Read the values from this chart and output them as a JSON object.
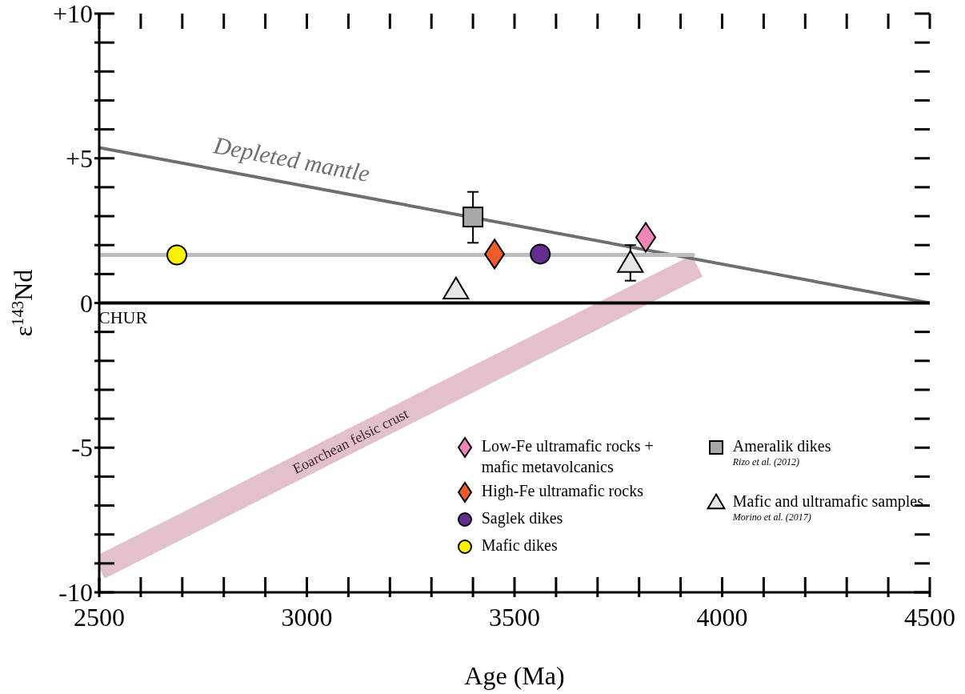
{
  "chart_data": {
    "type": "scatter",
    "xlabel": "Age (Ma)",
    "ylabel": "ε$^{143}$Nd",
    "xlim": [
      2500,
      4500
    ],
    "ylim": [
      -10,
      10
    ],
    "xticks": [
      2500,
      {
        "value": 2600,
        "label": null
      },
      {
        "value": 2700,
        "label": null
      },
      {
        "value": 2800,
        "label": null
      },
      {
        "value": 2900,
        "label": null
      },
      3000,
      {
        "value": 3100,
        "label": null
      },
      {
        "value": 3200,
        "label": null
      },
      {
        "value": 3300,
        "label": null
      },
      {
        "value": 3400,
        "label": null
      },
      3500,
      {
        "value": 3600,
        "label": null
      },
      {
        "value": 3700,
        "label": null
      },
      {
        "value": 3800,
        "label": null
      },
      {
        "value": 3900,
        "label": null
      },
      4000,
      {
        "value": 4100,
        "label": null
      },
      {
        "value": 4200,
        "label": null
      },
      {
        "value": 4300,
        "label": null
      },
      {
        "value": 4400,
        "label": null
      },
      4500
    ],
    "yticks": [
      -10,
      {
        "value": -9,
        "label": null
      },
      {
        "value": -8,
        "label": null
      },
      {
        "value": -7,
        "label": null
      },
      {
        "value": -6,
        "label": null
      },
      -5,
      {
        "value": -4,
        "label": null
      },
      {
        "value": -3,
        "label": null
      },
      {
        "value": -2,
        "label": null
      },
      {
        "value": -1,
        "label": null
      },
      0,
      {
        "value": 1,
        "label": null
      },
      {
        "value": 2,
        "label": null
      },
      {
        "value": 3,
        "label": null
      },
      {
        "value": 4,
        "label": null
      },
      {
        "value": 5,
        "label": "+5"
      },
      {
        "value": 6,
        "label": null
      },
      {
        "value": 7,
        "label": null
      },
      {
        "value": 8,
        "label": null
      },
      {
        "value": 9,
        "label": null
      },
      {
        "value": 10,
        "label": "+10"
      }
    ],
    "grid": false,
    "legend": "bottom right",
    "ref_lines": [
      {
        "axis": "y",
        "value": 0,
        "label": "CHUR",
        "color": "#000000"
      }
    ],
    "annotations": [
      "Rizo et al. (2012)",
      "Morino et al. (2017)"
    ],
    "series": [
      {
        "type": "line",
        "name": "Eoarchean felsic crust",
        "color": "#e3c1cc",
        "x": [
          2500,
          3940
        ],
        "values": [
          -9.15,
          1.28
        ]
      },
      {
        "type": "line",
        "name": "Depleted mantle",
        "color": "#6d6e71",
        "x": [
          2500,
          4500
        ],
        "values": [
          5.37,
          0
        ]
      },
      {
        "type": "line",
        "color": "#bcbdbf",
        "x": [
          2500,
          3930
        ],
        "values": [
          1.66,
          1.66
        ]
      },
      {
        "name": "Low-Fe ultramafic rocks + mafic metavolcanics",
        "color": "#f086b8",
        "marker": "diamond",
        "x": [
          3816
        ],
        "values": [
          2.27
        ]
      },
      {
        "name": "High-Fe ultramafic rocks",
        "color": "#f15a29",
        "marker": "diamond",
        "x": [
          3452
        ],
        "values": [
          1.69
        ]
      },
      {
        "name": "Saglek dikes",
        "color": "#662d91",
        "marker": "circle",
        "x": [
          3562
        ],
        "values": [
          1.69
        ]
      },
      {
        "name": "Mafic dikes",
        "color": "#fff200",
        "marker": "circle",
        "x": [
          2687
        ],
        "values": [
          1.66
        ]
      },
      {
        "name": "Ameralik dikes",
        "color": "#a7a9ac",
        "marker": "square",
        "x": [
          3400
        ],
        "values": [
          2.97
        ],
        "errors": [
          [
            2.08,
            3.84
          ]
        ]
      },
      {
        "name": "Mafic and ultramafic samples",
        "color": "#e6e7e8",
        "marker": "triangle",
        "x": [
          3359,
          3779
        ],
        "values": [
          0.45,
          1.37
        ],
        "errors": [
          null,
          [
            0.77,
            2.0
          ]
        ]
      }
    ]
  }
}
